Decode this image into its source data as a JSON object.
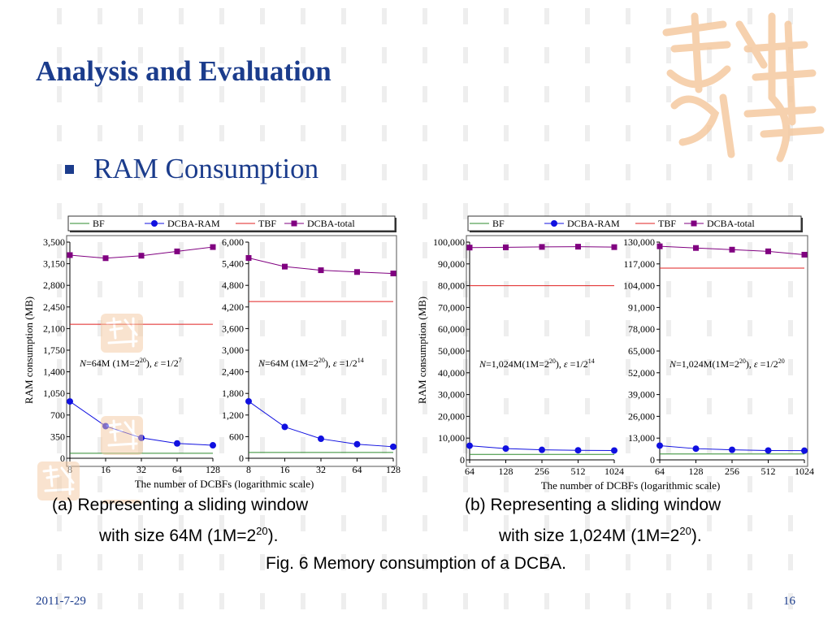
{
  "slide": {
    "title": "Analysis and Evaluation",
    "bullet": "RAM Consumption",
    "caption_a_line1": "(a)  Representing a sliding window",
    "caption_a_line2_prefix": "with size 64M (1M=2",
    "caption_a_line2_sup": "20",
    "caption_a_line2_suffix": ").",
    "caption_b_line1": "(b)  Representing a sliding window",
    "caption_b_line2_prefix": "with size 1,024M (1M=2",
    "caption_b_line2_sup": "20",
    "caption_b_line2_suffix": ").",
    "figure_caption": "Fig. 6  Memory consumption of a DCBA.",
    "date": "2011-7-29",
    "page_number": "16"
  },
  "colors": {
    "title": "#1b3c8c",
    "bf": "#2e8b2e",
    "dcba_ram": "#1010e0",
    "tbf": "#e02020",
    "dcba_total": "#800080",
    "seal": "#f5c9a0"
  },
  "chart_data": [
    {
      "type": "line",
      "group": "a",
      "title": "",
      "xlabel": "The number of DCBFs (logarithmic scale)",
      "ylabel": "RAM consumption (MB)",
      "annotation": {
        "prefix": "N",
        "text": "=64M (1M=2",
        "sup1": "20",
        "mid": "), ",
        "eps": "ε",
        "tail": "=1/2",
        "sup2": "7"
      },
      "legend": [
        "BF",
        "DCBA-RAM",
        "TBF",
        "DCBA-total"
      ],
      "log_x": true,
      "categories": [
        "8",
        "16",
        "32",
        "64",
        "128"
      ],
      "y_ticks": [
        "0",
        "350",
        "700",
        "1,050",
        "1,400",
        "1,750",
        "2,100",
        "2,450",
        "2,800",
        "3,150",
        "3,500"
      ],
      "ylim": [
        0,
        3500
      ],
      "series": [
        {
          "name": "BF",
          "values": [
            80,
            80,
            80,
            80,
            80
          ]
        },
        {
          "name": "DCBA-RAM",
          "values": [
            920,
            520,
            330,
            240,
            210
          ]
        },
        {
          "name": "TBF",
          "values": [
            2170,
            2170,
            2170,
            2170,
            2170
          ]
        },
        {
          "name": "DCBA-total",
          "values": [
            3290,
            3240,
            3280,
            3350,
            3420
          ]
        }
      ]
    },
    {
      "type": "line",
      "group": "a",
      "title": "",
      "xlabel": "",
      "ylabel": "",
      "annotation": {
        "prefix": "N",
        "text": "=64M (1M=2",
        "sup1": "20",
        "mid": "), ",
        "eps": "ε",
        "tail": "=1/2",
        "sup2": "14"
      },
      "legend": [],
      "log_x": true,
      "categories": [
        "8",
        "16",
        "32",
        "64",
        "128"
      ],
      "y_ticks": [
        "0",
        "600",
        "1,200",
        "1,800",
        "2,400",
        "3,000",
        "3,600",
        "4,200",
        "4,800",
        "5,400",
        "6,000"
      ],
      "ylim": [
        0,
        6000
      ],
      "series": [
        {
          "name": "BF",
          "values": [
            160,
            160,
            160,
            160,
            160
          ]
        },
        {
          "name": "DCBA-RAM",
          "values": [
            1580,
            870,
            540,
            390,
            320
          ]
        },
        {
          "name": "TBF",
          "values": [
            4350,
            4350,
            4350,
            4350,
            4350
          ]
        },
        {
          "name": "DCBA-total",
          "values": [
            5560,
            5320,
            5220,
            5170,
            5130
          ]
        }
      ]
    },
    {
      "type": "line",
      "group": "b",
      "title": "",
      "xlabel": "The number of DCBFs (logarithmic scale)",
      "ylabel": "RAM consumption (MB)",
      "annotation": {
        "prefix": "N",
        "text": "=1,024M(1M=2",
        "sup1": "20",
        "mid": "), ",
        "eps": "ε",
        "tail": "=1/2",
        "sup2": "14"
      },
      "legend": [
        "BF",
        "DCBA-RAM",
        "TBF",
        "DCBA-total"
      ],
      "log_x": true,
      "categories": [
        "64",
        "128",
        "256",
        "512",
        "1024"
      ],
      "y_ticks": [
        "0",
        "10,000",
        "20,000",
        "30,000",
        "40,000",
        "50,000",
        "60,000",
        "70,000",
        "80,000",
        "90,000",
        "100,000"
      ],
      "ylim": [
        0,
        100000
      ],
      "series": [
        {
          "name": "BF",
          "values": [
            2500,
            2500,
            2500,
            2500,
            2500
          ]
        },
        {
          "name": "DCBA-RAM",
          "values": [
            6500,
            5200,
            4600,
            4400,
            4300
          ]
        },
        {
          "name": "TBF",
          "values": [
            80000,
            80000,
            80000,
            80000,
            80000
          ]
        },
        {
          "name": "DCBA-total",
          "values": [
            97500,
            97600,
            97800,
            97900,
            97700
          ]
        }
      ]
    },
    {
      "type": "line",
      "group": "b",
      "title": "",
      "xlabel": "",
      "ylabel": "",
      "annotation": {
        "prefix": "N",
        "text": "=1,024M(1M=2",
        "sup1": "20",
        "mid": "), ",
        "eps": "ε",
        "tail": "=1/2",
        "sup2": "20"
      },
      "legend": [],
      "log_x": true,
      "categories": [
        "64",
        "128",
        "256",
        "512",
        "1024"
      ],
      "y_ticks": [
        "0",
        "13,000",
        "26,000",
        "39,000",
        "52,000",
        "65,000",
        "78,000",
        "91,000",
        "104,000",
        "117,000",
        "130,000"
      ],
      "ylim": [
        0,
        130000
      ],
      "series": [
        {
          "name": "BF",
          "values": [
            3500,
            3500,
            3500,
            3500,
            3500
          ]
        },
        {
          "name": "DCBA-RAM",
          "values": [
            8500,
            6700,
            6000,
            5600,
            5500
          ]
        },
        {
          "name": "TBF",
          "values": [
            114500,
            114500,
            114500,
            114500,
            114500
          ]
        },
        {
          "name": "DCBA-total",
          "values": [
            127500,
            126500,
            125500,
            124500,
            122500
          ]
        }
      ]
    }
  ]
}
